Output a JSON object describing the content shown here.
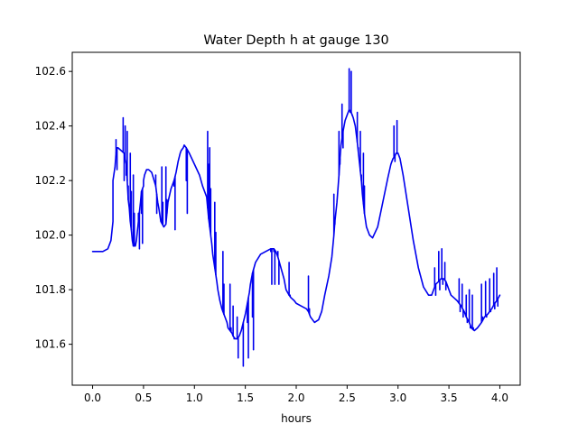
{
  "chart_data": {
    "type": "line",
    "title": "Water Depth h at gauge 130",
    "xlabel": "hours",
    "ylabel": "",
    "xlim": [
      -0.2,
      4.2
    ],
    "ylim": [
      101.45,
      102.67
    ],
    "x_ticks": [
      0.0,
      0.5,
      1.0,
      1.5,
      2.0,
      2.5,
      3.0,
      3.5,
      4.0
    ],
    "x_tick_labels": [
      "0.0",
      "0.5",
      "1.0",
      "1.5",
      "2.0",
      "2.5",
      "3.0",
      "3.5",
      "4.0"
    ],
    "y_ticks": [
      101.6,
      101.8,
      102.0,
      102.2,
      102.4,
      102.6
    ],
    "y_tick_labels": [
      "101.6",
      "101.8",
      "102.0",
      "102.2",
      "102.4",
      "102.6"
    ],
    "grid": false,
    "line_color": "#0000ee",
    "series": [
      {
        "x": [
          0.0,
          0.05,
          0.1,
          0.15,
          0.18,
          0.2,
          0.2,
          0.22,
          0.23,
          0.24,
          0.25,
          0.28,
          0.31,
          0.32,
          0.33,
          0.34,
          0.35,
          0.36,
          0.37,
          0.38,
          0.39,
          0.4,
          0.41,
          0.42,
          0.43,
          0.45,
          0.47,
          0.48,
          0.5,
          0.5,
          0.51,
          0.52,
          0.53,
          0.55,
          0.58,
          0.62,
          0.63,
          0.64,
          0.65,
          0.67,
          0.7,
          0.72,
          0.73,
          0.74,
          0.77,
          0.8,
          0.82,
          0.84,
          0.86,
          0.87,
          0.89,
          0.9,
          0.92,
          0.95,
          1.0,
          1.05,
          1.08,
          1.1,
          1.12,
          1.13,
          1.14,
          1.15,
          1.16,
          1.17,
          1.18,
          1.2,
          1.22,
          1.23,
          1.25,
          1.27,
          1.3,
          1.32,
          1.33,
          1.35,
          1.37,
          1.38,
          1.4,
          1.42,
          1.44,
          1.46,
          1.48,
          1.5,
          1.52,
          1.54,
          1.55,
          1.57,
          1.6,
          1.65,
          1.7,
          1.75,
          1.78,
          1.8,
          1.82,
          1.85,
          1.88,
          1.9,
          1.93,
          1.95,
          1.98,
          2.0,
          2.05,
          2.1,
          2.12,
          2.14,
          2.18,
          2.22,
          2.25,
          2.28,
          2.32,
          2.35,
          2.37,
          2.38,
          2.4,
          2.42,
          2.43,
          2.44,
          2.46,
          2.48,
          2.5,
          2.52,
          2.54,
          2.55,
          2.56,
          2.58,
          2.6,
          2.62,
          2.64,
          2.65,
          2.67,
          2.69,
          2.72,
          2.75,
          2.8,
          2.85,
          2.9,
          2.93,
          2.95,
          2.97,
          2.98,
          3.0,
          3.02,
          3.05,
          3.1,
          3.15,
          3.2,
          3.25,
          3.3,
          3.33,
          3.35,
          3.37,
          3.4,
          3.42,
          3.45,
          3.47,
          3.48,
          3.5,
          3.52,
          3.55,
          3.58,
          3.6,
          3.62,
          3.65,
          3.67,
          3.7,
          3.72,
          3.75,
          3.78,
          3.8,
          3.82,
          3.85,
          3.88,
          3.9,
          3.92,
          3.95,
          3.97,
          4.0
        ],
        "y": [
          101.94,
          101.94,
          101.94,
          101.95,
          101.98,
          102.05,
          102.2,
          102.25,
          102.3,
          102.32,
          102.32,
          102.31,
          102.3,
          102.28,
          102.26,
          102.2,
          102.13,
          102.1,
          102.05,
          102.02,
          101.98,
          101.96,
          101.96,
          101.96,
          101.98,
          102.05,
          102.12,
          102.16,
          102.18,
          102.2,
          102.22,
          102.23,
          102.24,
          102.24,
          102.23,
          102.18,
          102.15,
          102.12,
          102.1,
          102.05,
          102.03,
          102.04,
          102.08,
          102.12,
          102.17,
          102.2,
          102.23,
          102.27,
          102.3,
          102.31,
          102.32,
          102.33,
          102.32,
          102.3,
          102.26,
          102.22,
          102.18,
          102.16,
          102.14,
          102.1,
          102.06,
          102.03,
          102.0,
          101.97,
          101.93,
          101.88,
          101.83,
          101.8,
          101.76,
          101.73,
          101.7,
          101.68,
          101.66,
          101.65,
          101.64,
          101.63,
          101.62,
          101.62,
          101.63,
          101.65,
          101.68,
          101.71,
          101.75,
          101.79,
          101.82,
          101.86,
          101.9,
          101.93,
          101.94,
          101.95,
          101.95,
          101.94,
          101.92,
          101.88,
          101.84,
          101.8,
          101.78,
          101.77,
          101.76,
          101.75,
          101.74,
          101.73,
          101.72,
          101.7,
          101.68,
          101.69,
          101.72,
          101.78,
          101.85,
          101.92,
          102.0,
          102.05,
          102.12,
          102.22,
          102.28,
          102.33,
          102.38,
          102.42,
          102.44,
          102.46,
          102.45,
          102.44,
          102.43,
          102.4,
          102.34,
          102.27,
          102.2,
          102.15,
          102.08,
          102.03,
          102.0,
          101.99,
          102.03,
          102.12,
          102.21,
          102.26,
          102.28,
          102.29,
          102.3,
          102.3,
          102.28,
          102.22,
          102.1,
          101.98,
          101.88,
          101.81,
          101.78,
          101.78,
          101.8,
          101.82,
          101.83,
          101.84,
          101.84,
          101.83,
          101.82,
          101.8,
          101.78,
          101.77,
          101.76,
          101.75,
          101.74,
          101.72,
          101.7,
          101.68,
          101.66,
          101.65,
          101.66,
          101.67,
          101.68,
          101.7,
          101.71,
          101.72,
          101.73,
          101.75,
          101.76,
          101.78
        ],
        "spikes": [
          [
            0.23,
            102.35
          ],
          [
            0.24,
            102.24
          ],
          [
            0.3,
            102.43
          ],
          [
            0.31,
            102.2
          ],
          [
            0.32,
            102.4
          ],
          [
            0.33,
            102.22
          ],
          [
            0.34,
            102.38
          ],
          [
            0.35,
            102.18
          ],
          [
            0.37,
            102.3
          ],
          [
            0.38,
            102.16
          ],
          [
            0.4,
            102.22
          ],
          [
            0.41,
            102.08
          ],
          [
            0.45,
            102.08
          ],
          [
            0.46,
            101.95
          ],
          [
            0.48,
            102.08
          ],
          [
            0.49,
            101.97
          ],
          [
            0.62,
            102.22
          ],
          [
            0.63,
            102.08
          ],
          [
            0.68,
            102.25
          ],
          [
            0.69,
            102.12
          ],
          [
            0.72,
            102.25
          ],
          [
            0.73,
            102.13
          ],
          [
            0.8,
            102.18
          ],
          [
            0.81,
            102.02
          ],
          [
            0.92,
            102.2
          ],
          [
            0.93,
            102.08
          ],
          [
            1.13,
            102.38
          ],
          [
            1.14,
            102.26
          ],
          [
            1.15,
            102.32
          ],
          [
            1.16,
            102.17
          ],
          [
            1.2,
            102.12
          ],
          [
            1.21,
            102.01
          ],
          [
            1.28,
            101.94
          ],
          [
            1.29,
            101.82
          ],
          [
            1.35,
            101.82
          ],
          [
            1.36,
            101.66
          ],
          [
            1.38,
            101.74
          ],
          [
            1.39,
            101.62
          ],
          [
            1.42,
            101.7
          ],
          [
            1.43,
            101.55
          ],
          [
            1.47,
            101.66
          ],
          [
            1.48,
            101.52
          ],
          [
            1.52,
            101.68
          ],
          [
            1.53,
            101.55
          ],
          [
            1.57,
            101.7
          ],
          [
            1.58,
            101.58
          ],
          [
            1.75,
            101.94
          ],
          [
            1.76,
            101.82
          ],
          [
            1.78,
            101.94
          ],
          [
            1.79,
            101.82
          ],
          [
            1.82,
            101.94
          ],
          [
            1.83,
            101.82
          ],
          [
            1.93,
            101.9
          ],
          [
            1.94,
            101.78
          ],
          [
            2.12,
            101.85
          ],
          [
            2.13,
            101.73
          ],
          [
            2.37,
            102.15
          ],
          [
            2.38,
            102.04
          ],
          [
            2.42,
            102.38
          ],
          [
            2.43,
            102.26
          ],
          [
            2.45,
            102.48
          ],
          [
            2.46,
            102.32
          ],
          [
            2.52,
            102.61
          ],
          [
            2.53,
            102.45
          ],
          [
            2.54,
            102.6
          ],
          [
            2.55,
            102.44
          ],
          [
            2.6,
            102.45
          ],
          [
            2.61,
            102.32
          ],
          [
            2.63,
            102.38
          ],
          [
            2.64,
            102.22
          ],
          [
            2.66,
            102.3
          ],
          [
            2.67,
            102.18
          ],
          [
            2.96,
            102.4
          ],
          [
            2.97,
            102.27
          ],
          [
            2.99,
            102.42
          ],
          [
            3.0,
            102.3
          ],
          [
            3.36,
            101.88
          ],
          [
            3.37,
            101.78
          ],
          [
            3.4,
            101.94
          ],
          [
            3.41,
            101.8
          ],
          [
            3.43,
            101.95
          ],
          [
            3.44,
            101.82
          ],
          [
            3.46,
            101.9
          ],
          [
            3.47,
            101.8
          ],
          [
            3.6,
            101.84
          ],
          [
            3.61,
            101.72
          ],
          [
            3.63,
            101.82
          ],
          [
            3.64,
            101.7
          ],
          [
            3.67,
            101.78
          ],
          [
            3.68,
            101.68
          ],
          [
            3.7,
            101.8
          ],
          [
            3.71,
            101.66
          ],
          [
            3.73,
            101.78
          ],
          [
            3.74,
            101.66
          ],
          [
            3.82,
            101.82
          ],
          [
            3.83,
            101.7
          ],
          [
            3.86,
            101.83
          ],
          [
            3.87,
            101.7
          ],
          [
            3.9,
            101.84
          ],
          [
            3.91,
            101.72
          ],
          [
            3.94,
            101.86
          ],
          [
            3.95,
            101.73
          ],
          [
            3.97,
            101.88
          ],
          [
            3.98,
            101.74
          ]
        ]
      }
    ]
  }
}
